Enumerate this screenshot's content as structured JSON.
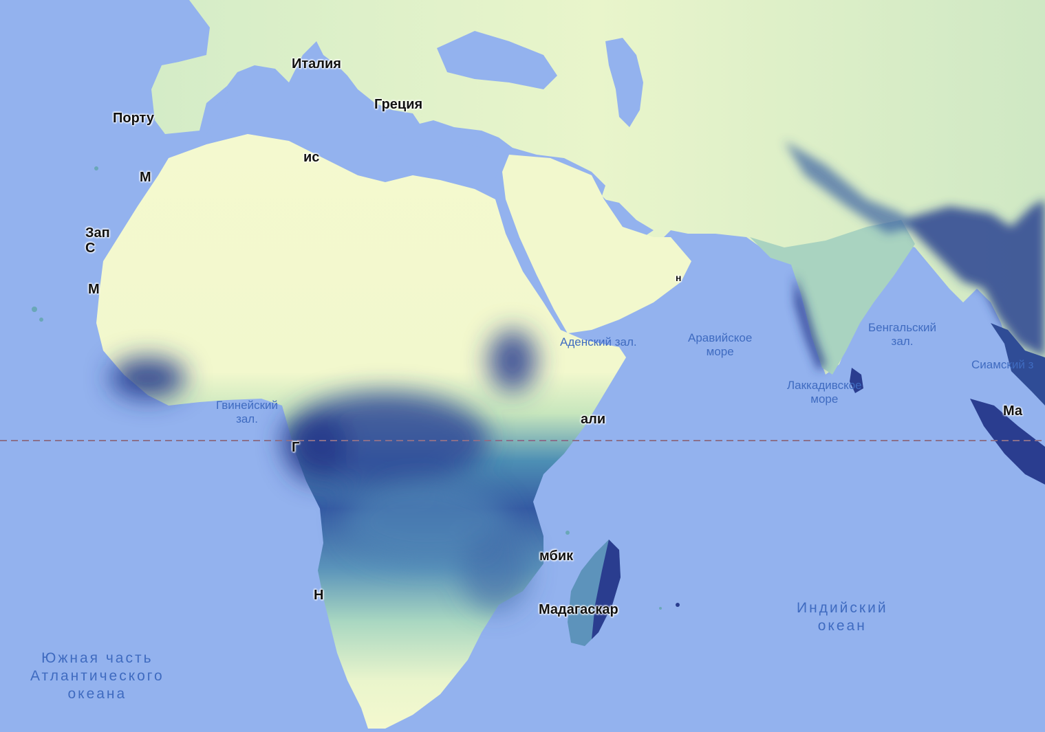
{
  "map": {
    "equator_color": "#8a6f8a",
    "colors": {
      "water": "#93b2ee",
      "dry": "#f4f9cf",
      "mid": "#7fc4b4",
      "wet": "#2a3d8f"
    },
    "country_labels": [
      {
        "id": "italy",
        "text": "Италия"
      },
      {
        "id": "greece",
        "text": "Греция"
      },
      {
        "id": "portugal",
        "text": "Порту"
      },
      {
        "id": "tunisia",
        "text": "ис"
      },
      {
        "id": "morocco",
        "text": "М"
      },
      {
        "id": "westsahara",
        "text": "Зап\nС"
      },
      {
        "id": "mauritania",
        "text": "М"
      },
      {
        "id": "somalia",
        "text": "али"
      },
      {
        "id": "gabon",
        "text": "Г"
      },
      {
        "id": "namibia",
        "text": "Н"
      },
      {
        "id": "mozambique",
        "text": "мбик"
      },
      {
        "id": "madagascar",
        "text": "Мадагаскар"
      },
      {
        "id": "malaysia",
        "text": "Ма"
      },
      {
        "id": "oman",
        "text": "н"
      }
    ],
    "water_labels": [
      {
        "id": "gulf-aden",
        "text": "Аденский зал."
      },
      {
        "id": "arabian-sea",
        "text": "Аравийское\nморе"
      },
      {
        "id": "bay-bengal",
        "text": "Бенгальский\nзал."
      },
      {
        "id": "gulf-siam",
        "text": "Сиамский з"
      },
      {
        "id": "laccadive-sea",
        "text": "Лаккадивское\nморе"
      },
      {
        "id": "gulf-guinea",
        "text": "Гвинейский\nзал."
      }
    ],
    "ocean_labels": [
      {
        "id": "indian-ocean",
        "text": "Индийский\nокеан"
      },
      {
        "id": "south-atlantic",
        "text": "Южная часть\nАтлантического\nокеана"
      }
    ]
  }
}
